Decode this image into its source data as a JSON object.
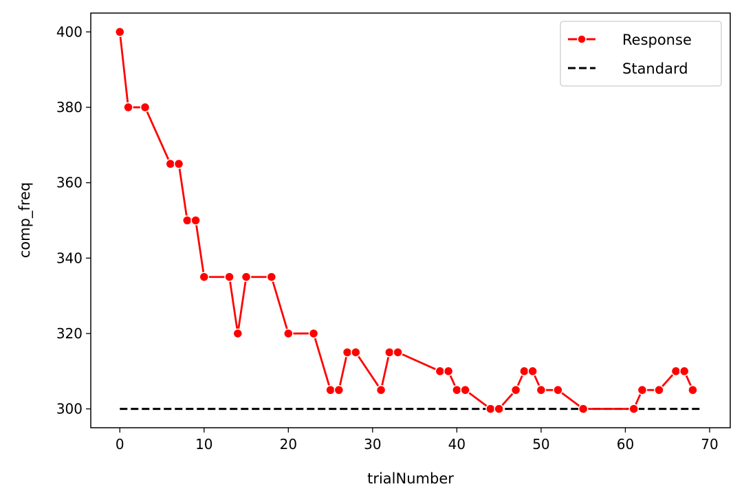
{
  "chart_data": {
    "type": "line",
    "title": "",
    "xlabel": "trialNumber",
    "ylabel": "comp_freq",
    "xlim": [
      -3.45,
      72.45
    ],
    "ylim": [
      295,
      405
    ],
    "xticks": [
      0,
      10,
      20,
      30,
      40,
      50,
      60,
      70
    ],
    "yticks": [
      300,
      320,
      340,
      360,
      380,
      400
    ],
    "xtick_labels": [
      "0",
      "10",
      "20",
      "30",
      "40",
      "50",
      "60",
      "70"
    ],
    "ytick_labels": [
      "300",
      "320",
      "340",
      "360",
      "380",
      "400"
    ],
    "grid": false,
    "legend_position": "top-right",
    "colors": {
      "response": "#ff0000",
      "standard": "#000000"
    },
    "series": [
      {
        "name": "Response",
        "style": "solid line with circle markers",
        "x": [
          0,
          1,
          3,
          6,
          7,
          8,
          9,
          10,
          13,
          14,
          15,
          18,
          20,
          23,
          25,
          26,
          27,
          28,
          31,
          32,
          33,
          38,
          39,
          40,
          41,
          44,
          45,
          47,
          48,
          49,
          50,
          52,
          55,
          61,
          62,
          64,
          66,
          67,
          68
        ],
        "y": [
          400,
          380,
          380,
          365,
          365,
          350,
          350,
          335,
          335,
          320,
          335,
          335,
          320,
          320,
          305,
          305,
          315,
          315,
          305,
          315,
          315,
          310,
          310,
          305,
          305,
          300,
          300,
          305,
          310,
          310,
          305,
          305,
          300,
          300,
          305,
          305,
          310,
          310,
          305
        ]
      },
      {
        "name": "Standard",
        "style": "dashed line",
        "x": [
          0,
          69
        ],
        "y": [
          300,
          300
        ]
      }
    ]
  }
}
